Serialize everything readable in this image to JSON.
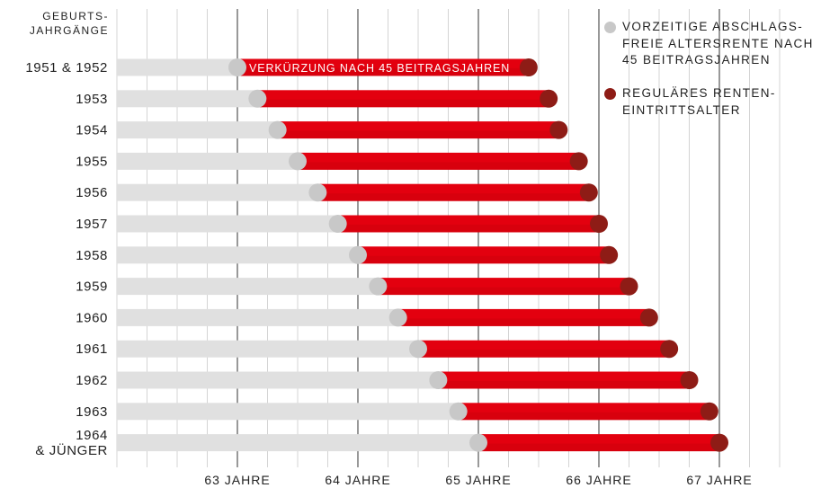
{
  "header": {
    "label": "GEBURTS-\nJAHRGÄNGE"
  },
  "legend": {
    "early": {
      "label": "VORZEITIGE ABSCHLAGS-\nFREIE ALTERSRENTE NACH\n45 BEITRAGSJAHREN",
      "color": "#c8c8c8"
    },
    "regular": {
      "label": "REGULÄRES RENTEN-\nEINTRITTSALTER",
      "color": "#8e1c16"
    }
  },
  "chart_data": {
    "type": "bar",
    "orientation": "horizontal",
    "title": "",
    "annotation": "VERKÜRZUNG NACH 45 BEITRAGSJAHREN",
    "x_axis": {
      "unit": "JAHRE",
      "range": [
        62.0,
        67.5
      ],
      "major_ticks": [
        63,
        64,
        65,
        66,
        67
      ],
      "tick_labels": [
        "63 JAHRE",
        "64 JAHRE",
        "65 JAHRE",
        "66 JAHRE",
        "67 JAHRE"
      ],
      "minor_step": 0.25
    },
    "categories": [
      "1951 & 1952",
      "1953",
      "1954",
      "1955",
      "1956",
      "1957",
      "1958",
      "1959",
      "1960",
      "1961",
      "1962",
      "1963",
      "1964\n& JÜNGER"
    ],
    "series": [
      {
        "name": "VORZEITIGE ABSCHLAGSFREIE ALTERSRENTE NACH 45 BEITRAGSJAHREN",
        "values": [
          63.0,
          63.1667,
          63.3333,
          63.5,
          63.6667,
          63.8333,
          64.0,
          64.1667,
          64.3333,
          64.5,
          64.6667,
          64.8333,
          65.0
        ]
      },
      {
        "name": "REGULÄRES RENTENEINTRITTSALTER",
        "values": [
          65.4167,
          65.5833,
          65.6667,
          65.8333,
          65.9167,
          66.0,
          66.0833,
          66.25,
          66.4167,
          66.5833,
          66.75,
          66.9167,
          67.0
        ]
      }
    ],
    "colors": {
      "bar_bg": "#e0e0e0",
      "bar_red": "#e3000f",
      "dot_early": "#c8c8c8",
      "dot_regular": "#8e1c16",
      "grid": "#d4d4d4",
      "grid_major": "#555555"
    }
  }
}
